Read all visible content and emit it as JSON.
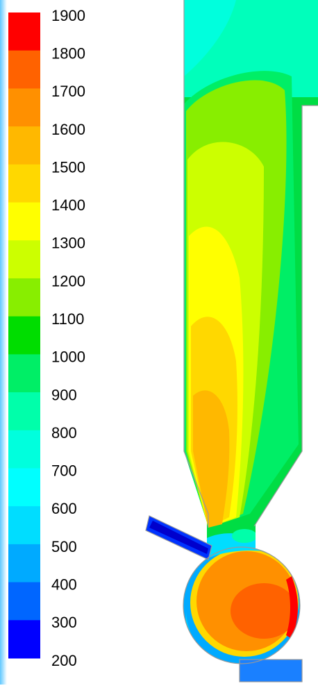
{
  "colorbar": {
    "ticks": [
      1900,
      1800,
      1700,
      1600,
      1500,
      1400,
      1300,
      1200,
      1100,
      1000,
      900,
      800,
      700,
      600,
      500,
      400,
      300,
      200
    ],
    "colors": [
      "#ff0000",
      "#ff6200",
      "#ff9000",
      "#ffb800",
      "#ffd800",
      "#ffff00",
      "#ccff00",
      "#88ee00",
      "#00dd00",
      "#00ee66",
      "#00ffaa",
      "#00ffdd",
      "#00ffff",
      "#00ddff",
      "#00aaff",
      "#0066ff",
      "#0000ff"
    ]
  }
}
